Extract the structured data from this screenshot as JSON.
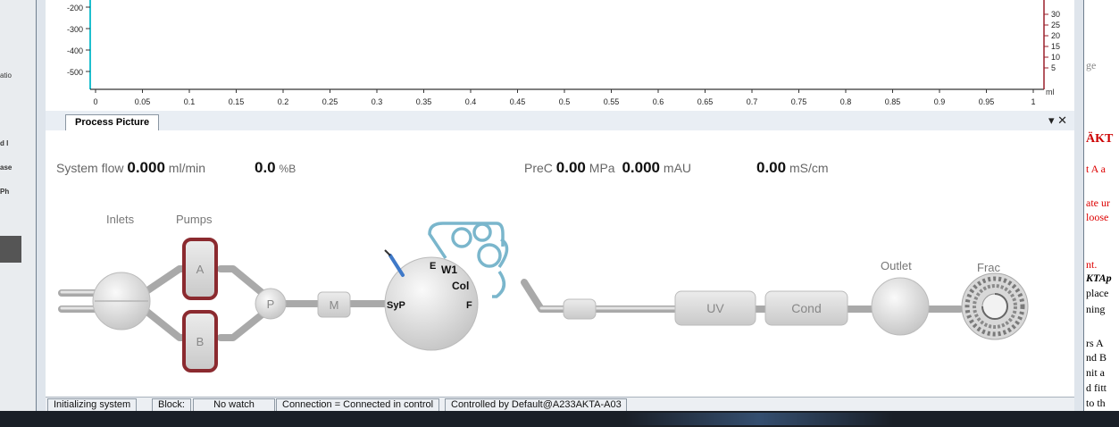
{
  "chart": {
    "y_ticks": [
      "-200",
      "-300",
      "-400",
      "-500"
    ],
    "x_ticks": [
      "0",
      "0.05",
      "0.1",
      "0.15",
      "0.2",
      "0.25",
      "0.3",
      "0.35",
      "0.4",
      "0.45",
      "0.5",
      "0.55",
      "0.6",
      "0.65",
      "0.7",
      "0.75",
      "0.8",
      "0.85",
      "0.9",
      "0.95",
      "1"
    ],
    "y2_ticks": [
      "30",
      "25",
      "20",
      "15",
      "10",
      "5"
    ],
    "y2_unit": "ml",
    "left_axis_color": "#1fbfcf",
    "right_axis_color": "#9a1f2a"
  },
  "panel": {
    "tab_label": "Process Picture",
    "controls": "▾ ✕"
  },
  "readouts": {
    "system_flow_label": "System flow",
    "system_flow_value": "0.000",
    "system_flow_unit": "ml/min",
    "percent_b_value": "0.0",
    "percent_b_unit": "%B",
    "prec_label": "PreC",
    "prec_value": "0.00",
    "prec_unit": "MPa",
    "uv_value": "0.000",
    "uv_unit": "mAU",
    "cond_value": "0.00",
    "cond_unit": "mS/cm"
  },
  "flowpath": {
    "inlets": "Inlets",
    "pumps": "Pumps",
    "pump_a": "A",
    "pump_b": "B",
    "pressure": "P",
    "mixer": "M",
    "valve_syp": "SyP",
    "valve_e": "E",
    "valve_w1": "W1",
    "valve_col": "Col",
    "valve_f": "F",
    "uv": "UV",
    "cond": "Cond",
    "outlet": "Outlet",
    "frac": "Frac",
    "pump_color": "#8b2a2f",
    "column_color": "#7ab6cc"
  },
  "status_bar": {
    "state": "Initializing system",
    "block": "Block:",
    "watch": "No watch",
    "connection": "Connection = Connected in control",
    "controlled_by": "Controlled by Default@A233AKTA-A03"
  },
  "background_left": [
    "atio",
    "d l",
    "ase",
    "Ph"
  ],
  "background_right": {
    "lines": [
      "ge",
      "ÄKT",
      "t A a",
      "ate ur",
      "loose",
      "nt.",
      "KTAp",
      "place",
      "ning",
      "rs A",
      "nd B",
      "nit a",
      "d fitt",
      "to th"
    ]
  }
}
